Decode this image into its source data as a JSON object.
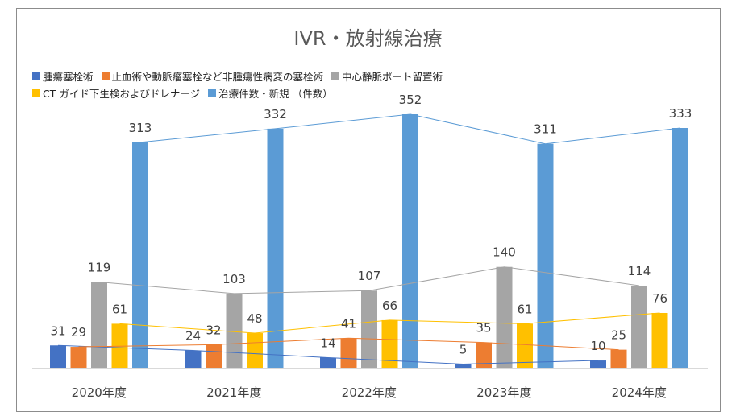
{
  "chart_data": {
    "type": "bar",
    "title": "IVR・放射線治療",
    "categories": [
      "2020年度",
      "2021年度",
      "2022年度",
      "2023年度",
      "2024年度"
    ],
    "series": [
      {
        "name": "腫瘍塞栓術",
        "color": "#4472c4",
        "values": [
          31,
          24,
          14,
          5,
          10
        ]
      },
      {
        "name": "止血術や動脈瘤塞栓など非腫瘍性病変の塞栓術",
        "color": "#ed7d31",
        "values": [
          29,
          32,
          41,
          35,
          25
        ]
      },
      {
        "name": "中心静脈ポート留置術",
        "color": "#a5a5a5",
        "values": [
          119,
          103,
          107,
          140,
          114
        ]
      },
      {
        "name": "CT ガイド下生検およびドレナージ",
        "color": "#ffc000",
        "values": [
          61,
          48,
          66,
          61,
          76
        ]
      },
      {
        "name": "治療件数・新規 （件数）",
        "color": "#5b9bd5",
        "values": [
          313,
          332,
          352,
          311,
          333
        ]
      }
    ],
    "ylim": [
      0,
      360
    ],
    "trendlines": true,
    "legend_position": "top-left",
    "grid": false
  }
}
